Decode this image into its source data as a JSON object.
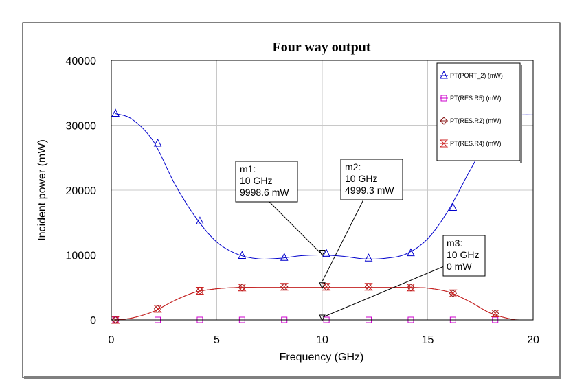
{
  "chart_data": {
    "type": "line",
    "title": "Four way output",
    "xlabel": "Frequency (GHz)",
    "ylabel": "Incident power (mW)",
    "xlim": [
      0,
      20
    ],
    "ylim": [
      0,
      40000
    ],
    "x_ticks": [
      "0",
      "5",
      "10",
      "15",
      "20"
    ],
    "y_ticks": [
      "0",
      "10000",
      "20000",
      "30000",
      "40000"
    ],
    "grid": true,
    "legend_position": "top-right",
    "series": [
      {
        "name": "PT(PORT_2) (mW)",
        "color": "#0000cc",
        "marker": "triangle-up",
        "curve_x": [
          0.2,
          1,
          2,
          3,
          4,
          5,
          6,
          7,
          8,
          9,
          10,
          11,
          12,
          13,
          14,
          15,
          16,
          17,
          18,
          19,
          19.5,
          20
        ],
        "curve_y": [
          31800,
          30900,
          27500,
          21000,
          15800,
          12000,
          10100,
          9400,
          9500,
          9900,
          10000,
          9800,
          9400,
          9500,
          10200,
          12500,
          17000,
          23000,
          28500,
          31400,
          31600,
          31600
        ],
        "markers_x": [
          0.2,
          2.2,
          4.2,
          6.2,
          8.2,
          10.2,
          12.2,
          14.2,
          16.2
        ],
        "markers_y": [
          31800,
          27200,
          15200,
          9900,
          9600,
          10200,
          9500,
          10300,
          17300
        ]
      },
      {
        "name": "PT(RES.R5) (mW)",
        "color": "#cc00cc",
        "marker": "square",
        "curve_x": [
          0.2,
          20
        ],
        "curve_y": [
          0,
          0
        ],
        "markers_x": [
          0.2,
          2.2,
          4.2,
          6.2,
          8.2,
          10.2,
          12.2,
          14.2,
          16.2,
          18.2
        ],
        "markers_y": [
          0,
          0,
          0,
          0,
          0,
          0,
          0,
          0,
          0,
          0
        ]
      },
      {
        "name": "PT(RES.R2) (mW)",
        "color": "#8b1a1a",
        "marker": "diamond",
        "curve_x": [
          0.2,
          1,
          2,
          3,
          4,
          5,
          6,
          7,
          8,
          9,
          10,
          11,
          12,
          13,
          14,
          15,
          16,
          17,
          18,
          19,
          19.5
        ],
        "curve_y": [
          0,
          300,
          1300,
          3000,
          4300,
          4800,
          5000,
          5000,
          5000,
          5000,
          5000,
          5000,
          5000,
          5000,
          5000,
          4900,
          4300,
          2800,
          1000,
          100,
          0
        ],
        "markers_x": [
          0.2,
          2.2,
          4.2,
          6.2,
          8.2,
          10.2,
          12.2,
          14.2,
          16.2,
          18.2
        ],
        "markers_y": [
          0,
          1700,
          4500,
          5000,
          5100,
          5100,
          5100,
          5000,
          4100,
          1000
        ]
      },
      {
        "name": "PT(RES.R4) (mW)",
        "color": "#cc2222",
        "marker": "hourglass",
        "curve_x": [
          0.2,
          1,
          2,
          3,
          4,
          5,
          6,
          7,
          8,
          9,
          10,
          11,
          12,
          13,
          14,
          15,
          16,
          17,
          18,
          19,
          19.5
        ],
        "curve_y": [
          0,
          300,
          1300,
          3000,
          4300,
          4800,
          5000,
          5000,
          5000,
          5000,
          5000,
          5000,
          5000,
          5000,
          5000,
          4900,
          4300,
          2800,
          1000,
          100,
          0
        ],
        "markers_x": [
          0.2,
          2.2,
          4.2,
          6.2,
          8.2,
          10.2,
          12.2,
          14.2,
          16.2,
          18.2
        ],
        "markers_y": [
          0,
          1700,
          4500,
          5000,
          5100,
          5100,
          5100,
          5000,
          4100,
          1000
        ]
      }
    ],
    "markers": [
      {
        "name": "m1",
        "lines": [
          "m1:",
          "10 GHz",
          "9998.6 mW"
        ],
        "x": 10,
        "y": 9998.6
      },
      {
        "name": "m2",
        "lines": [
          "m2:",
          "10 GHz",
          "4999.3 mW"
        ],
        "x": 10,
        "y": 4999.3
      },
      {
        "name": "m3",
        "lines": [
          "m3:",
          "10 GHz",
          "0 mW"
        ],
        "x": 10,
        "y": 0
      }
    ]
  }
}
